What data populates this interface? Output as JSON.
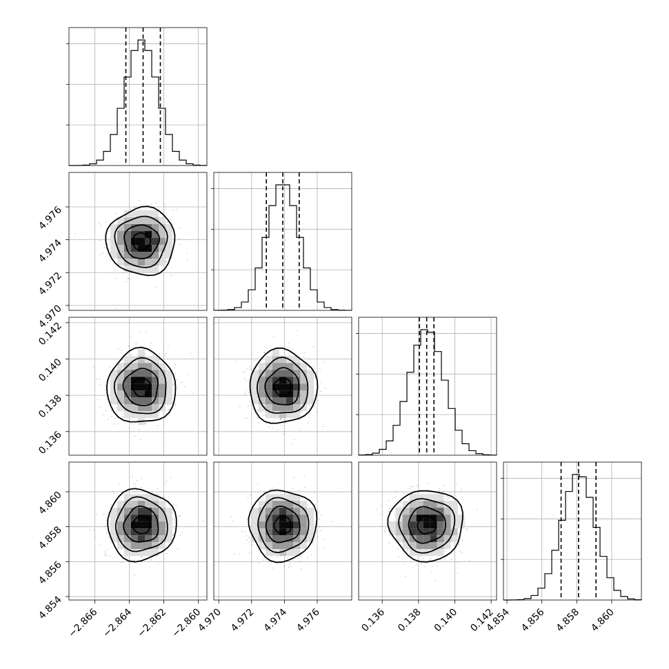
{
  "chart_data": {
    "type": "corner",
    "parameters": 4,
    "grid": true,
    "quantiles_shown": [
      0.16,
      0.5,
      0.84
    ],
    "params": [
      {
        "center": -2.8633,
        "sd": 0.00095,
        "lim": [
          -2.8675,
          -2.8595
        ],
        "ticks": [
          -2.866,
          -2.864,
          -2.862,
          -2.86
        ],
        "tick_labels": [
          "−2.866",
          "−2.864",
          "−2.862",
          "−2.860"
        ],
        "quantiles": [
          -2.8642,
          -2.8632,
          -2.8622
        ]
      },
      {
        "center": 4.9739,
        "sd": 0.00098,
        "lim": [
          4.9697,
          4.9781
        ],
        "ticks": [
          4.97,
          4.972,
          4.974,
          4.976
        ],
        "tick_labels": [
          "4.970",
          "4.972",
          "4.974",
          "4.976"
        ],
        "quantiles": [
          4.9729,
          4.9739,
          4.9749
        ]
      },
      {
        "center": 0.13845,
        "sd": 0.00097,
        "lim": [
          0.1347,
          0.1423
        ],
        "ticks": [
          0.136,
          0.138,
          0.14,
          0.142
        ],
        "tick_labels": [
          "0.136",
          "0.138",
          "0.140",
          "0.142"
        ],
        "quantiles": [
          0.13805,
          0.13845,
          0.13885
        ]
      },
      {
        "center": 4.8581,
        "sd": 0.00097,
        "lim": [
          4.8538,
          4.8617
        ],
        "ticks": [
          4.854,
          4.856,
          4.858,
          4.86
        ],
        "tick_labels": [
          "4.854",
          "4.856",
          "4.858",
          "4.860"
        ],
        "quantiles": [
          4.8571,
          4.8581,
          4.8591
        ]
      }
    ],
    "histogram_bins": 20,
    "histogram_peak_tick_fraction": [
      0.27,
      0.54,
      0.81
    ],
    "density_colors": [
      "#f7f7f7",
      "#e0e0e0",
      "#c2c2c2",
      "#9a9a9a",
      "#6e6e6e",
      "#3a3a3a",
      "#0a0a0a"
    ],
    "contour_levels_sigma": [
      0.5,
      1.0,
      1.5,
      2.0
    ]
  }
}
